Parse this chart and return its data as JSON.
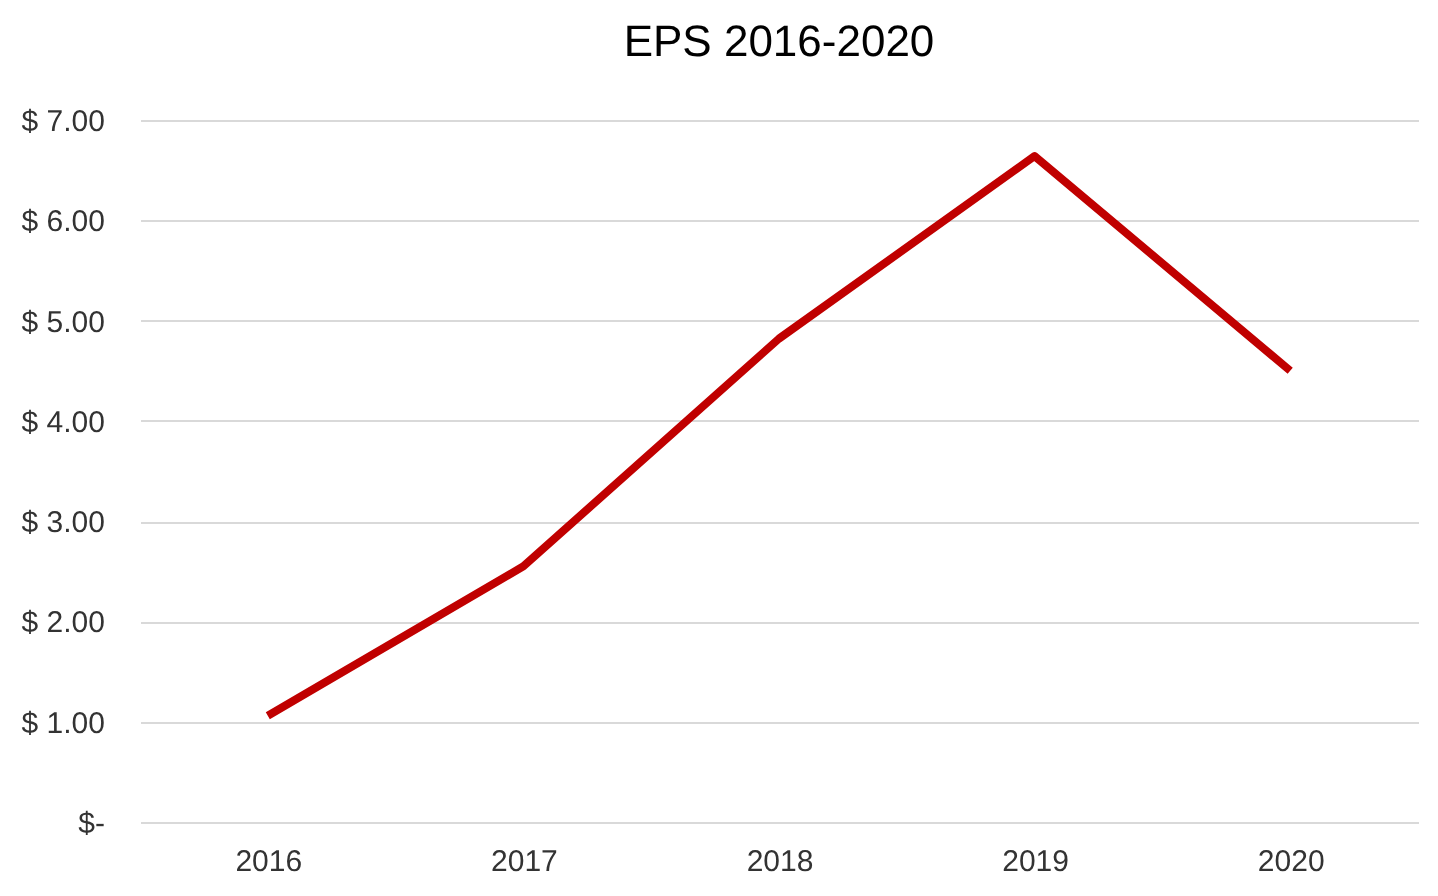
{
  "chart_data": {
    "type": "line",
    "title": "EPS 2016-2020",
    "categories": [
      "2016",
      "2017",
      "2018",
      "2019",
      "2020"
    ],
    "series": [
      {
        "color": "#c00000",
        "values": [
          1.06,
          2.55,
          4.82,
          6.64,
          4.5
        ]
      }
    ],
    "ylim": [
      0,
      7
    ],
    "yticks": [
      {
        "value": 0,
        "label": "$-"
      },
      {
        "value": 1,
        "label": "$ 1.00"
      },
      {
        "value": 2,
        "label": "$ 2.00"
      },
      {
        "value": 3,
        "label": "$ 3.00"
      },
      {
        "value": 4,
        "label": "$ 4.00"
      },
      {
        "value": 5,
        "label": "$ 5.00"
      },
      {
        "value": 6,
        "label": "$ 6.00"
      },
      {
        "value": 7,
        "label": "$ 7.00"
      }
    ],
    "grid": "y",
    "legend": false,
    "marker": "none",
    "line_style": "solid"
  }
}
